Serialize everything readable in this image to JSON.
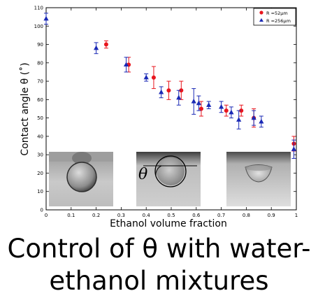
{
  "chart_data": {
    "type": "scatter",
    "xlabel": "Ethanol volume fraction",
    "ylabel": "Contact angle θ (˚)",
    "xlim": [
      0,
      1
    ],
    "ylim": [
      0,
      110
    ],
    "x_ticks": [
      "0",
      "0.1",
      "0.2",
      "0.3",
      "0.4",
      "0.5",
      "0.6",
      "0.7",
      "0.8",
      "0.9",
      "1"
    ],
    "y_ticks": [
      "0",
      "10",
      "20",
      "30",
      "40",
      "50",
      "60",
      "70",
      "80",
      "90",
      "100",
      "110"
    ],
    "legend_position": "top-right",
    "inset_label": "θ",
    "series": [
      {
        "name": "R =52μm",
        "marker": "circle",
        "color": "#e8161e",
        "points": [
          {
            "x": 0.24,
            "y": 90,
            "err": 2
          },
          {
            "x": 0.33,
            "y": 79,
            "err": 4
          },
          {
            "x": 0.43,
            "y": 72,
            "err": 6
          },
          {
            "x": 0.49,
            "y": 65,
            "err": 5
          },
          {
            "x": 0.54,
            "y": 65,
            "err": 5
          },
          {
            "x": 0.62,
            "y": 55,
            "err": 4
          },
          {
            "x": 0.72,
            "y": 54,
            "err": 3
          },
          {
            "x": 0.78,
            "y": 54,
            "err": 3
          },
          {
            "x": 0.83,
            "y": 50,
            "err": 5
          },
          {
            "x": 0.99,
            "y": 36,
            "err": 4
          }
        ]
      },
      {
        "name": "R =256μm",
        "marker": "triangle",
        "color": "#1a29b5",
        "points": [
          {
            "x": 0.0,
            "y": 104,
            "err": 3
          },
          {
            "x": 0.2,
            "y": 88,
            "err": 3
          },
          {
            "x": 0.32,
            "y": 79,
            "err": 4
          },
          {
            "x": 0.4,
            "y": 72,
            "err": 2
          },
          {
            "x": 0.46,
            "y": 64,
            "err": 3
          },
          {
            "x": 0.53,
            "y": 61,
            "err": 4
          },
          {
            "x": 0.59,
            "y": 59,
            "err": 7
          },
          {
            "x": 0.61,
            "y": 58,
            "err": 4
          },
          {
            "x": 0.65,
            "y": 57,
            "err": 2
          },
          {
            "x": 0.7,
            "y": 56,
            "err": 3
          },
          {
            "x": 0.74,
            "y": 53,
            "err": 3
          },
          {
            "x": 0.77,
            "y": 49,
            "err": 5
          },
          {
            "x": 0.83,
            "y": 50,
            "err": 4
          },
          {
            "x": 0.86,
            "y": 48,
            "err": 3
          },
          {
            "x": 0.99,
            "y": 33,
            "err": 5
          }
        ]
      }
    ]
  },
  "caption": {
    "line1": "Control of θ with water-",
    "line2": "ethanol mixtures"
  }
}
